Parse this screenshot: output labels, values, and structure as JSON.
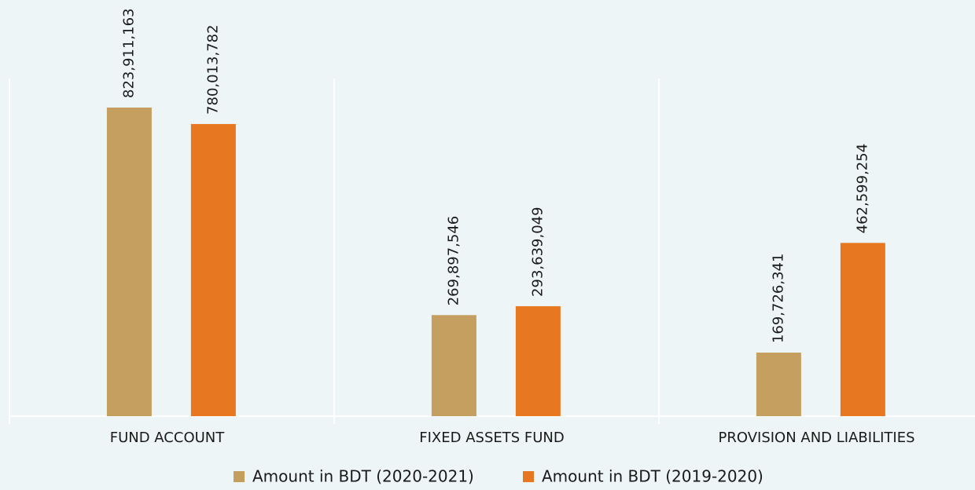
{
  "chart_data": {
    "type": "bar",
    "categories": [
      "FUND ACCOUNT",
      "FIXED ASSETS FUND",
      "PROVISION AND LIABILITIES"
    ],
    "series": [
      {
        "name": "Amount in BDT (2020-2021)",
        "color": "#c49f5f",
        "values": [
          823911163,
          269897546,
          169726341
        ],
        "value_labels": [
          "823,911,163",
          "269,897,546",
          "169,726,341"
        ]
      },
      {
        "name": "Amount in BDT (2019-2020)",
        "color": "#e87722",
        "values": [
          780013782,
          293639049,
          462599254
        ],
        "value_labels": [
          "780,013,782",
          "293,639,049",
          "462,599,254"
        ]
      }
    ],
    "ylim": [
      0,
      1000000000
    ],
    "legend": "bottom"
  }
}
